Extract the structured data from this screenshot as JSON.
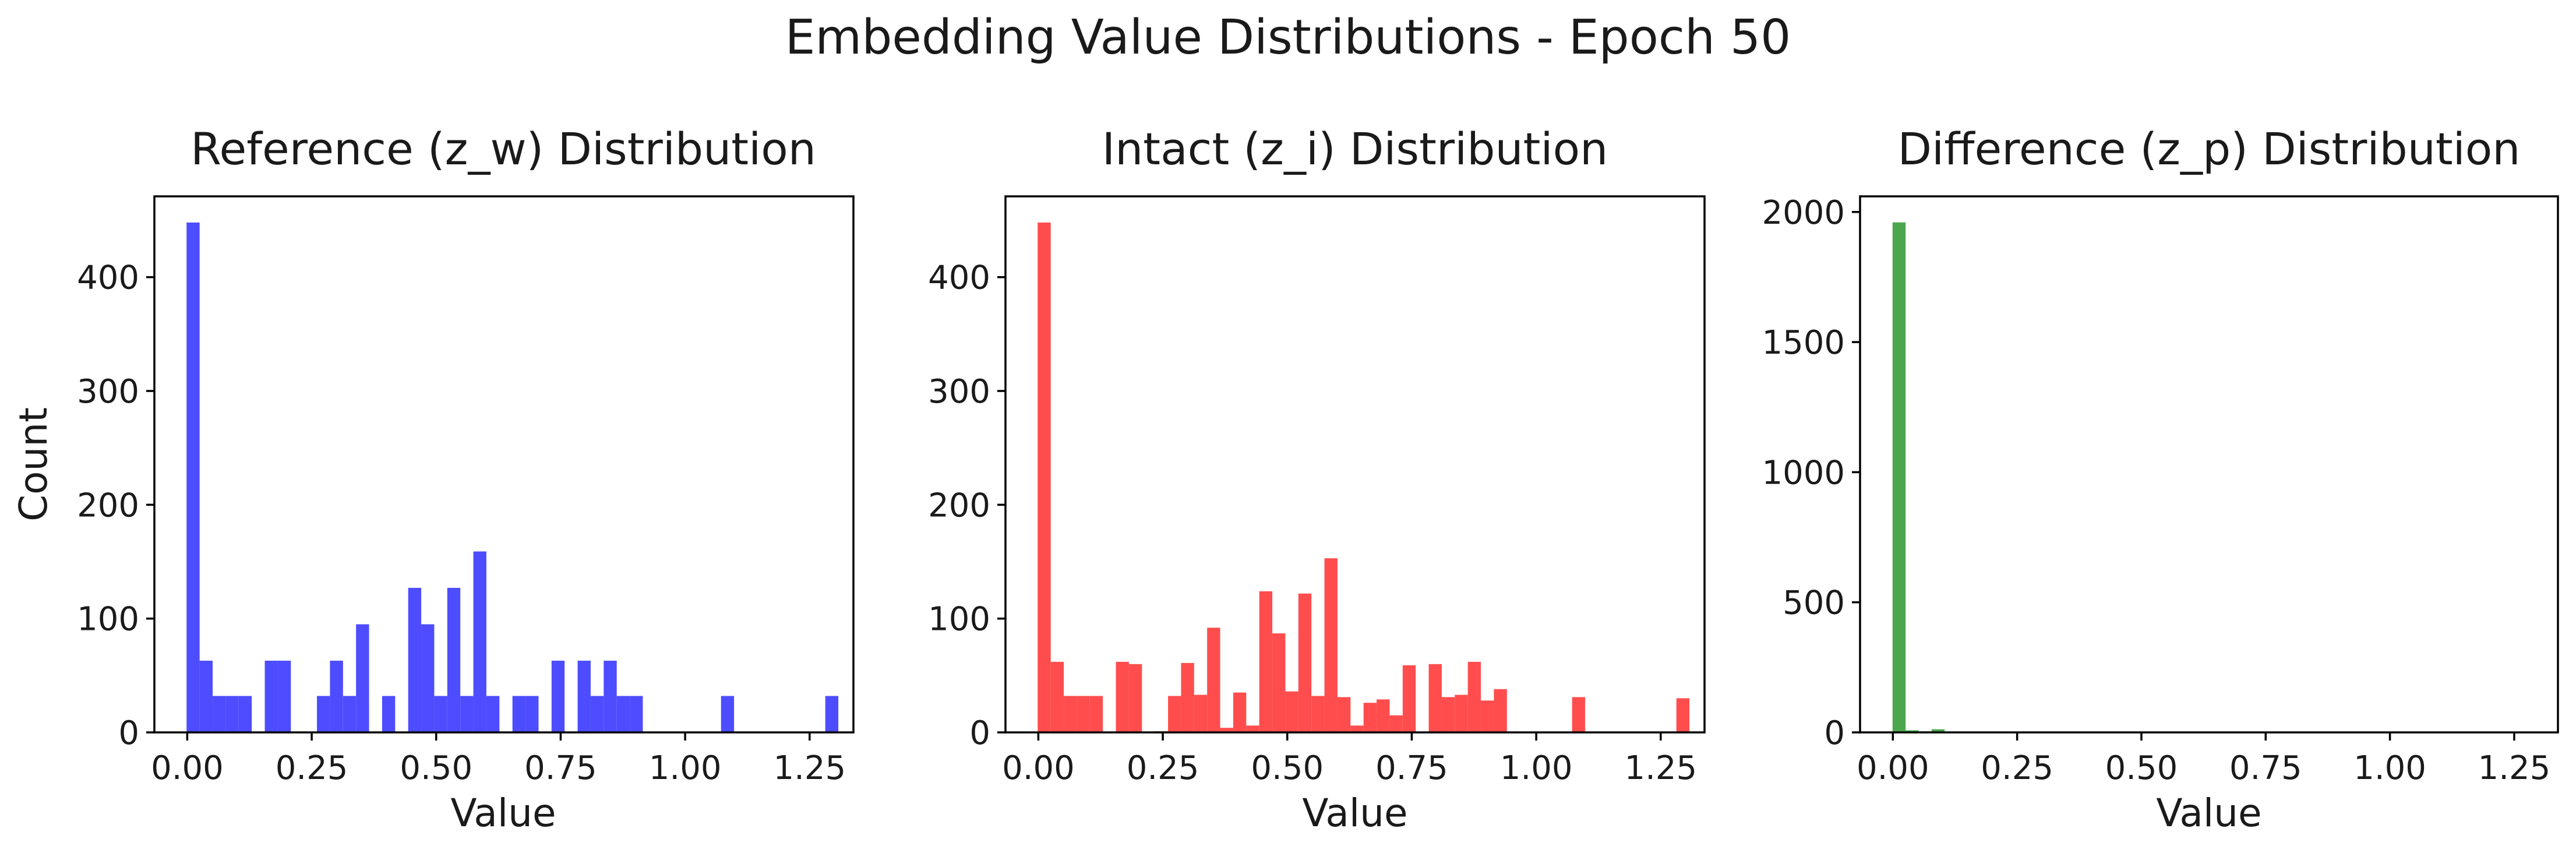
{
  "chart_data": {
    "suptitle": "Embedding Value Distributions - Epoch 50",
    "panels": [
      {
        "type": "bar",
        "title": "Reference (z_w) Distribution",
        "xlabel": "Value",
        "ylabel": "Count",
        "color": "#4d4dff",
        "xlim": [
          -0.066,
          1.338
        ],
        "ylim": [
          0,
          471
        ],
        "xticks": [
          0.0,
          0.25,
          0.5,
          0.75,
          1.0,
          1.25
        ],
        "xtick_labels": [
          "0.00",
          "0.25",
          "0.50",
          "0.75",
          "1.00",
          "1.25"
        ],
        "yticks": [
          0,
          100,
          200,
          300,
          400
        ],
        "yticks_labels": [
          "0",
          "100",
          "200",
          "300",
          "400"
        ],
        "bin_start": -0.00131,
        "bin_width": 0.02618,
        "values": [
          448,
          63,
          32,
          32,
          32,
          0,
          63,
          63,
          0,
          0,
          32,
          63,
          32,
          95,
          0,
          32,
          0,
          127,
          95,
          32,
          127,
          32,
          159,
          32,
          0,
          32,
          32,
          0,
          63,
          0,
          63,
          32,
          63,
          32,
          32,
          0,
          0,
          0,
          0,
          0,
          0,
          32,
          0,
          0,
          0,
          0,
          0,
          0,
          0,
          32
        ]
      },
      {
        "type": "bar",
        "title": "Intact (z_i) Distribution",
        "xlabel": "Value",
        "ylabel": "",
        "color": "#ff4d4d",
        "xlim": [
          -0.066,
          1.338
        ],
        "ylim": [
          0,
          471
        ],
        "xticks": [
          0.0,
          0.25,
          0.5,
          0.75,
          1.0,
          1.25
        ],
        "xtick_labels": [
          "0.00",
          "0.25",
          "0.50",
          "0.75",
          "1.00",
          "1.25"
        ],
        "yticks": [
          0,
          100,
          200,
          300,
          400
        ],
        "yticks_labels": [
          "0",
          "100",
          "200",
          "300",
          "400"
        ],
        "bin_start": -0.00131,
        "bin_width": 0.02618,
        "values": [
          448,
          62,
          32,
          32,
          32,
          0,
          62,
          60,
          0,
          1,
          32,
          61,
          33,
          92,
          4,
          35,
          6,
          124,
          87,
          36,
          122,
          32,
          153,
          31,
          6,
          26,
          29,
          15,
          59,
          0,
          60,
          31,
          33,
          62,
          28,
          38,
          0,
          0,
          0,
          0,
          0,
          31,
          0,
          0,
          0,
          0,
          0,
          0,
          0,
          30
        ]
      },
      {
        "type": "bar",
        "title": "Difference (z_p) Distribution",
        "xlabel": "Value",
        "ylabel": "",
        "color": "#4ca64c",
        "xlim": [
          -0.066,
          1.338
        ],
        "ylim": [
          0,
          2060
        ],
        "xticks": [
          0.0,
          0.25,
          0.5,
          0.75,
          1.0,
          1.25
        ],
        "xtick_labels": [
          "0.00",
          "0.25",
          "0.50",
          "0.75",
          "1.00",
          "1.25"
        ],
        "yticks": [
          0,
          500,
          1000,
          1500,
          2000
        ],
        "yticks_labels": [
          "0",
          "500",
          "1000",
          "1500",
          "2000"
        ],
        "bin_start": -0.053,
        "bin_width": 0.0262,
        "values": [
          3,
          3,
          1960,
          8,
          4,
          12,
          3,
          2,
          2,
          1,
          1,
          0,
          0,
          0,
          0,
          0,
          0,
          0,
          0,
          0,
          0,
          0,
          0,
          0,
          0,
          0,
          0,
          0,
          0,
          0,
          0,
          0,
          0,
          0,
          0,
          0,
          0,
          0,
          0,
          0,
          0,
          0,
          0,
          0,
          0,
          0,
          0,
          0,
          0,
          0,
          0,
          0
        ]
      }
    ]
  }
}
